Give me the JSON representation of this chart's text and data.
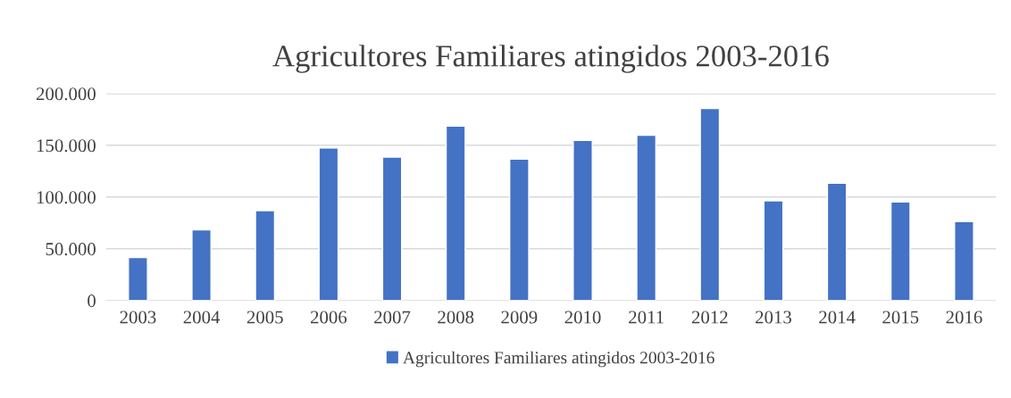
{
  "chart_data": {
    "type": "bar",
    "title": "Agricultores Familiares atingidos 2003-2016",
    "categories": [
      "2003",
      "2004",
      "2005",
      "2006",
      "2007",
      "2008",
      "2009",
      "2010",
      "2011",
      "2012",
      "2013",
      "2014",
      "2015",
      "2016"
    ],
    "series": [
      {
        "name": "Agricultores Familiares atingidos 2003-2016",
        "color": "#4472c4",
        "values": [
          41500,
          68200,
          86800,
          147300,
          138600,
          168500,
          136700,
          154800,
          159600,
          185500,
          96300,
          113400,
          95300,
          76300
        ]
      }
    ],
    "ylim": [
      0,
      200000
    ],
    "yticks": [
      {
        "value": 0,
        "label": "0"
      },
      {
        "value": 50000,
        "label": "50.000"
      },
      {
        "value": 100000,
        "label": "100.000"
      },
      {
        "value": 150000,
        "label": "150.000"
      },
      {
        "value": 200000,
        "label": "200.000"
      }
    ],
    "grid": "y",
    "legend": "bottom"
  }
}
